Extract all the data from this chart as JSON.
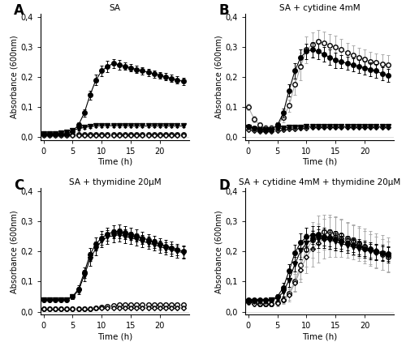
{
  "time": [
    0,
    1,
    2,
    3,
    4,
    5,
    6,
    7,
    8,
    9,
    10,
    11,
    12,
    13,
    14,
    15,
    16,
    17,
    18,
    19,
    20,
    21,
    22,
    23,
    24
  ],
  "A": {
    "title": "SA",
    "closed_circle": [
      0.01,
      0.01,
      0.01,
      0.01,
      0.01,
      0.02,
      0.04,
      0.08,
      0.14,
      0.19,
      0.22,
      0.235,
      0.245,
      0.24,
      0.235,
      0.23,
      0.225,
      0.22,
      0.215,
      0.21,
      0.205,
      0.2,
      0.195,
      0.19,
      0.185
    ],
    "closed_circle_err": [
      0.005,
      0.005,
      0.005,
      0.005,
      0.005,
      0.005,
      0.008,
      0.012,
      0.015,
      0.018,
      0.018,
      0.018,
      0.015,
      0.015,
      0.012,
      0.012,
      0.012,
      0.012,
      0.012,
      0.012,
      0.012,
      0.012,
      0.012,
      0.012,
      0.012
    ],
    "open_circle": [
      0.008,
      0.008,
      0.008,
      0.008,
      0.008,
      0.008,
      0.008,
      0.008,
      0.008,
      0.008,
      0.008,
      0.008,
      0.008,
      0.008,
      0.008,
      0.008,
      0.008,
      0.008,
      0.008,
      0.008,
      0.008,
      0.008,
      0.008,
      0.008,
      0.008
    ],
    "open_circle_err": [
      0.002,
      0.002,
      0.002,
      0.002,
      0.002,
      0.002,
      0.002,
      0.002,
      0.002,
      0.002,
      0.002,
      0.002,
      0.002,
      0.002,
      0.002,
      0.002,
      0.002,
      0.002,
      0.002,
      0.002,
      0.002,
      0.002,
      0.002,
      0.002,
      0.002
    ],
    "closed_triangle": [
      0.01,
      0.01,
      0.012,
      0.015,
      0.018,
      0.022,
      0.028,
      0.032,
      0.035,
      0.037,
      0.038,
      0.038,
      0.038,
      0.038,
      0.038,
      0.037,
      0.037,
      0.037,
      0.037,
      0.037,
      0.037,
      0.037,
      0.037,
      0.037,
      0.037
    ],
    "closed_triangle_err": [
      0.003,
      0.003,
      0.003,
      0.003,
      0.004,
      0.004,
      0.005,
      0.005,
      0.005,
      0.005,
      0.005,
      0.005,
      0.005,
      0.005,
      0.005,
      0.005,
      0.005,
      0.005,
      0.005,
      0.005,
      0.005,
      0.005,
      0.005,
      0.005,
      0.005
    ],
    "open_triangle": [
      0.005,
      0.005,
      0.005,
      0.005,
      0.005,
      0.005,
      0.005,
      0.005,
      0.005,
      0.005,
      0.005,
      0.005,
      0.005,
      0.005,
      0.005,
      0.005,
      0.005,
      0.005,
      0.005,
      0.005,
      0.005,
      0.005,
      0.005,
      0.005,
      0.005
    ],
    "open_triangle_err": [
      0.002,
      0.002,
      0.002,
      0.002,
      0.002,
      0.002,
      0.002,
      0.002,
      0.002,
      0.002,
      0.002,
      0.002,
      0.002,
      0.002,
      0.002,
      0.002,
      0.002,
      0.002,
      0.002,
      0.002,
      0.002,
      0.002,
      0.002,
      0.002,
      0.002
    ]
  },
  "B": {
    "title": "SA + cytidine 4mM",
    "closed_circle": [
      0.035,
      0.03,
      0.025,
      0.025,
      0.025,
      0.04,
      0.08,
      0.155,
      0.22,
      0.265,
      0.285,
      0.29,
      0.285,
      0.275,
      0.265,
      0.255,
      0.25,
      0.245,
      0.24,
      0.235,
      0.23,
      0.225,
      0.22,
      0.21,
      0.205
    ],
    "closed_circle_err": [
      0.005,
      0.005,
      0.005,
      0.005,
      0.005,
      0.008,
      0.015,
      0.02,
      0.025,
      0.025,
      0.025,
      0.025,
      0.025,
      0.025,
      0.025,
      0.025,
      0.022,
      0.022,
      0.022,
      0.022,
      0.022,
      0.022,
      0.022,
      0.022,
      0.022
    ],
    "open_circle": [
      0.1,
      0.06,
      0.04,
      0.03,
      0.03,
      0.04,
      0.065,
      0.105,
      0.175,
      0.235,
      0.29,
      0.308,
      0.318,
      0.312,
      0.305,
      0.298,
      0.29,
      0.28,
      0.272,
      0.265,
      0.258,
      0.252,
      0.247,
      0.243,
      0.24
    ],
    "open_circle_err": [
      0.01,
      0.01,
      0.01,
      0.01,
      0.01,
      0.01,
      0.015,
      0.02,
      0.035,
      0.045,
      0.045,
      0.04,
      0.038,
      0.038,
      0.038,
      0.038,
      0.035,
      0.032,
      0.032,
      0.032,
      0.032,
      0.032,
      0.032,
      0.032,
      0.032
    ],
    "closed_triangle": [
      0.032,
      0.028,
      0.025,
      0.025,
      0.025,
      0.028,
      0.03,
      0.032,
      0.033,
      0.034,
      0.035,
      0.035,
      0.035,
      0.035,
      0.035,
      0.035,
      0.035,
      0.035,
      0.035,
      0.035,
      0.035,
      0.035,
      0.035,
      0.035,
      0.035
    ],
    "closed_triangle_err": [
      0.004,
      0.004,
      0.004,
      0.004,
      0.004,
      0.004,
      0.004,
      0.004,
      0.004,
      0.004,
      0.004,
      0.004,
      0.004,
      0.004,
      0.004,
      0.004,
      0.004,
      0.004,
      0.004,
      0.004,
      0.004,
      0.004,
      0.004,
      0.004,
      0.004
    ],
    "open_triangle": [
      0.025,
      0.022,
      0.02,
      0.02,
      0.02,
      0.022,
      0.025,
      0.027,
      0.028,
      0.03,
      0.031,
      0.032,
      0.032,
      0.032,
      0.032,
      0.032,
      0.032,
      0.032,
      0.032,
      0.032,
      0.032,
      0.032,
      0.032,
      0.032,
      0.032
    ],
    "open_triangle_err": [
      0.003,
      0.003,
      0.003,
      0.003,
      0.003,
      0.003,
      0.003,
      0.003,
      0.003,
      0.003,
      0.003,
      0.003,
      0.003,
      0.003,
      0.003,
      0.003,
      0.003,
      0.003,
      0.003,
      0.003,
      0.003,
      0.003,
      0.003,
      0.003,
      0.003
    ]
  },
  "C": {
    "title": "SA + thymidine 20µM",
    "closed_circle": [
      0.04,
      0.04,
      0.04,
      0.04,
      0.04,
      0.05,
      0.075,
      0.13,
      0.19,
      0.225,
      0.245,
      0.258,
      0.265,
      0.267,
      0.263,
      0.258,
      0.252,
      0.245,
      0.238,
      0.232,
      0.225,
      0.218,
      0.212,
      0.206,
      0.2
    ],
    "closed_circle_err": [
      0.005,
      0.005,
      0.005,
      0.005,
      0.005,
      0.008,
      0.012,
      0.018,
      0.022,
      0.022,
      0.022,
      0.022,
      0.022,
      0.022,
      0.022,
      0.02,
      0.02,
      0.02,
      0.02,
      0.02,
      0.02,
      0.02,
      0.02,
      0.02,
      0.02
    ],
    "open_circle": [
      0.01,
      0.01,
      0.01,
      0.01,
      0.01,
      0.01,
      0.01,
      0.01,
      0.01,
      0.012,
      0.015,
      0.018,
      0.02,
      0.022,
      0.022,
      0.022,
      0.022,
      0.022,
      0.022,
      0.022,
      0.022,
      0.022,
      0.022,
      0.022,
      0.022
    ],
    "open_circle_err": [
      0.003,
      0.003,
      0.003,
      0.003,
      0.003,
      0.003,
      0.003,
      0.003,
      0.003,
      0.003,
      0.004,
      0.004,
      0.004,
      0.004,
      0.004,
      0.004,
      0.004,
      0.004,
      0.004,
      0.004,
      0.004,
      0.004,
      0.004,
      0.004,
      0.004
    ],
    "closed_triangle": [
      0.038,
      0.038,
      0.038,
      0.038,
      0.04,
      0.05,
      0.07,
      0.12,
      0.175,
      0.21,
      0.235,
      0.248,
      0.252,
      0.255,
      0.25,
      0.245,
      0.24,
      0.234,
      0.228,
      0.222,
      0.216,
      0.21,
      0.205,
      0.2,
      0.196
    ],
    "closed_triangle_err": [
      0.005,
      0.005,
      0.005,
      0.005,
      0.005,
      0.008,
      0.012,
      0.018,
      0.022,
      0.022,
      0.022,
      0.022,
      0.022,
      0.022,
      0.022,
      0.02,
      0.02,
      0.02,
      0.02,
      0.02,
      0.02,
      0.02,
      0.02,
      0.02,
      0.02
    ],
    "open_triangle": [
      0.01,
      0.01,
      0.01,
      0.01,
      0.01,
      0.01,
      0.01,
      0.01,
      0.01,
      0.011,
      0.012,
      0.012,
      0.013,
      0.013,
      0.013,
      0.013,
      0.013,
      0.013,
      0.013,
      0.013,
      0.013,
      0.013,
      0.013,
      0.013,
      0.013
    ],
    "open_triangle_err": [
      0.003,
      0.003,
      0.003,
      0.003,
      0.003,
      0.003,
      0.003,
      0.003,
      0.003,
      0.003,
      0.003,
      0.003,
      0.003,
      0.003,
      0.003,
      0.003,
      0.003,
      0.003,
      0.003,
      0.003,
      0.003,
      0.003,
      0.003,
      0.003,
      0.003
    ]
  },
  "D": {
    "title": "SA + cytidine 4mM + thymidine 20µM",
    "closed_circle": [
      0.04,
      0.04,
      0.04,
      0.04,
      0.04,
      0.05,
      0.08,
      0.135,
      0.195,
      0.23,
      0.248,
      0.255,
      0.255,
      0.25,
      0.245,
      0.24,
      0.235,
      0.228,
      0.222,
      0.216,
      0.21,
      0.205,
      0.2,
      0.196,
      0.192
    ],
    "closed_circle_err": [
      0.005,
      0.005,
      0.005,
      0.005,
      0.005,
      0.008,
      0.015,
      0.022,
      0.028,
      0.03,
      0.03,
      0.03,
      0.03,
      0.03,
      0.028,
      0.028,
      0.025,
      0.025,
      0.025,
      0.025,
      0.025,
      0.025,
      0.025,
      0.025,
      0.025
    ],
    "open_circle": [
      0.035,
      0.03,
      0.025,
      0.025,
      0.025,
      0.03,
      0.04,
      0.06,
      0.1,
      0.155,
      0.205,
      0.238,
      0.258,
      0.265,
      0.265,
      0.26,
      0.255,
      0.245,
      0.238,
      0.228,
      0.218,
      0.208,
      0.198,
      0.19,
      0.182
    ],
    "open_circle_err": [
      0.01,
      0.008,
      0.008,
      0.008,
      0.008,
      0.01,
      0.012,
      0.02,
      0.032,
      0.045,
      0.055,
      0.06,
      0.06,
      0.058,
      0.058,
      0.055,
      0.052,
      0.05,
      0.05,
      0.05,
      0.05,
      0.05,
      0.05,
      0.05,
      0.05
    ],
    "closed_triangle": [
      0.035,
      0.035,
      0.035,
      0.035,
      0.038,
      0.045,
      0.065,
      0.105,
      0.158,
      0.202,
      0.228,
      0.238,
      0.242,
      0.242,
      0.238,
      0.232,
      0.226,
      0.22,
      0.215,
      0.21,
      0.205,
      0.2,
      0.196,
      0.192,
      0.188
    ],
    "closed_triangle_err": [
      0.005,
      0.005,
      0.005,
      0.005,
      0.005,
      0.008,
      0.015,
      0.022,
      0.025,
      0.028,
      0.028,
      0.03,
      0.03,
      0.03,
      0.028,
      0.028,
      0.025,
      0.025,
      0.025,
      0.025,
      0.025,
      0.025,
      0.025,
      0.025,
      0.025
    ],
    "open_triangle": [
      0.03,
      0.025,
      0.025,
      0.025,
      0.025,
      0.028,
      0.038,
      0.055,
      0.095,
      0.14,
      0.182,
      0.21,
      0.228,
      0.242,
      0.248,
      0.248,
      0.244,
      0.238,
      0.232,
      0.225,
      0.218,
      0.21,
      0.202,
      0.196,
      0.188
    ],
    "open_triangle_err": [
      0.008,
      0.008,
      0.008,
      0.008,
      0.008,
      0.01,
      0.012,
      0.02,
      0.03,
      0.042,
      0.055,
      0.06,
      0.065,
      0.065,
      0.065,
      0.065,
      0.062,
      0.06,
      0.058,
      0.058,
      0.058,
      0.058,
      0.058,
      0.058,
      0.058
    ]
  },
  "ylabel": "Absorbance (600nm)",
  "xlabel": "Time (h)",
  "ylim": [
    -0.01,
    0.41
  ],
  "yticks": [
    0.0,
    0.1,
    0.2,
    0.3,
    0.4
  ],
  "ytick_labels": [
    "0,0",
    "0,1",
    "0,2",
    "0,3",
    "0,4"
  ],
  "xlim": [
    -0.5,
    25
  ],
  "xticks": [
    0,
    5,
    10,
    15,
    20
  ],
  "markersize": 4,
  "linewidth": 0.8,
  "elinewidth": 0.7,
  "capsize": 1.5
}
